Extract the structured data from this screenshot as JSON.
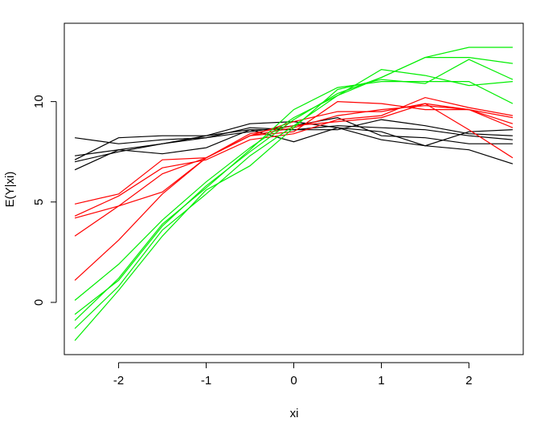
{
  "chart_data": {
    "type": "line",
    "title": "",
    "xlabel": "xi",
    "ylabel": "E(Y|xi)",
    "xlim": [
      -2.62,
      2.62
    ],
    "ylim": [
      -2.6,
      13.9
    ],
    "xticks": [
      -2,
      -1,
      0,
      1,
      2
    ],
    "xtick_labels": [
      "-2",
      "-1",
      "0",
      "1",
      "2"
    ],
    "yticks": [
      0,
      5,
      10
    ],
    "ytick_labels": [
      "0",
      "5",
      "10"
    ],
    "grid": false,
    "legend": "none",
    "x": [
      -2.5,
      -2,
      -1.5,
      -1,
      -0.5,
      0,
      0.5,
      1,
      1.5,
      2,
      2.5
    ],
    "colors": {
      "group_black": "#000000",
      "group_red": "#ff0000",
      "group_green": "#00ee00"
    },
    "series": [
      {
        "group": "black",
        "values": [
          8.2,
          7.9,
          8.1,
          8.2,
          8.7,
          8.6,
          8.8,
          8.7,
          8.6,
          8.3,
          8.1
        ]
      },
      {
        "group": "black",
        "values": [
          7.3,
          7.6,
          7.4,
          7.7,
          8.6,
          8.0,
          8.7,
          8.5,
          7.8,
          8.5,
          8.6
        ]
      },
      {
        "group": "black",
        "values": [
          7.0,
          7.5,
          7.9,
          8.3,
          8.9,
          9.0,
          8.7,
          8.1,
          7.8,
          7.6,
          6.9
        ]
      },
      {
        "group": "black",
        "values": [
          6.6,
          7.6,
          7.9,
          8.2,
          8.5,
          8.8,
          9.2,
          8.3,
          8.2,
          7.9,
          7.9
        ]
      },
      {
        "group": "black",
        "values": [
          7.1,
          8.2,
          8.3,
          8.3,
          8.6,
          8.6,
          8.6,
          9.1,
          8.8,
          8.4,
          8.3
        ]
      },
      {
        "group": "red",
        "values": [
          4.9,
          5.4,
          7.1,
          7.2,
          8.3,
          8.5,
          10.0,
          9.9,
          9.6,
          9.6,
          9.2
        ]
      },
      {
        "group": "red",
        "values": [
          4.3,
          5.3,
          6.7,
          7.1,
          8.1,
          8.4,
          9.1,
          9.3,
          10.2,
          9.7,
          9.3
        ]
      },
      {
        "group": "red",
        "values": [
          4.2,
          4.8,
          5.5,
          7.2,
          8.3,
          8.7,
          9.3,
          9.6,
          9.8,
          9.6,
          8.7
        ]
      },
      {
        "group": "red",
        "values": [
          3.3,
          4.8,
          6.4,
          7.2,
          8.3,
          9.0,
          9.5,
          9.5,
          9.9,
          9.6,
          8.9
        ]
      },
      {
        "group": "red",
        "values": [
          1.1,
          3.1,
          5.4,
          7.2,
          8.4,
          8.8,
          9.0,
          9.2,
          9.9,
          8.6,
          7.2
        ]
      },
      {
        "group": "green",
        "values": [
          0.1,
          1.9,
          4.1,
          6.0,
          7.7,
          9.2,
          10.3,
          11.2,
          12.2,
          12.7,
          12.7
        ]
      },
      {
        "group": "green",
        "values": [
          -0.6,
          1.1,
          3.8,
          5.8,
          7.5,
          9.1,
          10.4,
          11.2,
          12.2,
          12.2,
          11.9
        ]
      },
      {
        "group": "green",
        "values": [
          -0.9,
          1.2,
          3.9,
          5.7,
          7.6,
          9.6,
          10.7,
          11.0,
          11.0,
          11.0,
          9.9
        ]
      },
      {
        "group": "green",
        "values": [
          -1.3,
          0.8,
          3.6,
          5.4,
          7.3,
          8.8,
          10.3,
          11.6,
          11.3,
          10.8,
          11.0
        ]
      },
      {
        "group": "green",
        "values": [
          -1.9,
          0.6,
          3.3,
          5.6,
          6.8,
          8.7,
          10.6,
          11.1,
          10.9,
          12.1,
          11.1
        ]
      }
    ]
  }
}
